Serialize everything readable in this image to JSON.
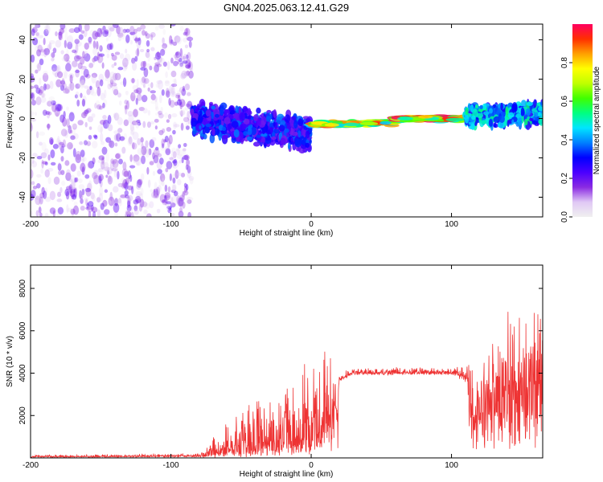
{
  "title": "GN04.2025.063.12.41.G29",
  "chart_data": [
    {
      "type": "heatmap",
      "xlabel": "Height of straight line (km)",
      "ylabel": "Frequency (Hz)",
      "xlim": [
        -200,
        165
      ],
      "ylim": [
        -50,
        48
      ],
      "xticks": [
        -200,
        -100,
        0,
        100
      ],
      "yticks": [
        -40,
        -20,
        0,
        20,
        40
      ],
      "colorbar": {
        "label": "Normalized spectral amplitude",
        "range": [
          0,
          1
        ],
        "ticks": [
          "0.0",
          "0.2",
          "0.4",
          "0.6",
          "0.8"
        ],
        "colormap": [
          "#f0f0f0",
          "#e0c8f5",
          "#8a2be2",
          "#4b00ff",
          "#0000ff",
          "#0080ff",
          "#00e5ff",
          "#00ff80",
          "#40ff00",
          "#c0ff00",
          "#ffff00",
          "#ffa000",
          "#ff3000",
          "#ff0060"
        ]
      },
      "regions": [
        {
          "x_range": [
            -200,
            -85
          ],
          "description_level": 0.2,
          "freq_spread": [
            -50,
            48
          ]
        },
        {
          "x_range": [
            -85,
            0
          ],
          "description_level": 0.35,
          "freq_center": [
            0,
            -8
          ],
          "freq_width": 12
        },
        {
          "x_range": [
            0,
            60
          ],
          "description_level": 0.85,
          "freq_center": [
            -3,
            -2
          ]
        },
        {
          "x_range": [
            60,
            110
          ],
          "description_level": 0.95,
          "freq_center": [
            0,
            0
          ]
        },
        {
          "x_range": [
            110,
            165
          ],
          "description_level": 0.5,
          "freq_center": [
            1,
            3
          ],
          "freq_width": 8
        }
      ],
      "grid": false
    },
    {
      "type": "line",
      "xlabel": "Height of straight line (km)",
      "ylabel": "SNR (10 * v/v)",
      "xlim": [
        -200,
        165
      ],
      "ylim": [
        0,
        9100
      ],
      "xticks": [
        -200,
        -100,
        0,
        100
      ],
      "yticks": [
        2000,
        4000,
        6000,
        8000
      ],
      "color": "#ee3333",
      "envelope": [
        {
          "x": -200,
          "base": 50,
          "amp": 100
        },
        {
          "x": -80,
          "base": 80,
          "amp": 150
        },
        {
          "x": -70,
          "base": 200,
          "amp": 800
        },
        {
          "x": -50,
          "base": 300,
          "amp": 2200
        },
        {
          "x": -20,
          "base": 500,
          "amp": 3000
        },
        {
          "x": 0,
          "base": 700,
          "amp": 4500
        },
        {
          "x": 15,
          "base": 1500,
          "amp": 4500
        },
        {
          "x": 20,
          "base": 3700,
          "amp": 500
        },
        {
          "x": 30,
          "base": 4000,
          "amp": 300
        },
        {
          "x": 100,
          "base": 4000,
          "amp": 300
        },
        {
          "x": 120,
          "base": 3700,
          "amp": 1500
        },
        {
          "x": 140,
          "base": 3500,
          "amp": 4000
        },
        {
          "x": 165,
          "base": 3500,
          "amp": 5500
        }
      ],
      "grid": false
    }
  ]
}
